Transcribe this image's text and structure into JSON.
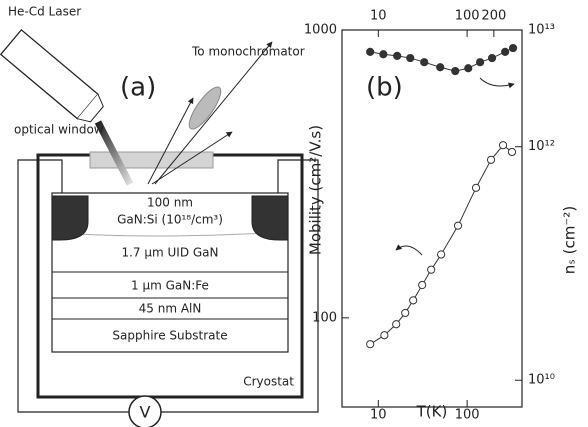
{
  "diagram": {
    "laser": "He-Cd Laser",
    "panel": "(a)",
    "mono": "To monochromator",
    "window": "optical window",
    "layers": [
      "100 nm",
      "GaN:Si (10¹⁸/cm³)",
      "1.7 μm UID GaN",
      "1 μm GaN:Fe",
      "45 nm AlN",
      "Sapphire Substrate"
    ],
    "cryostat": "Cryostat",
    "meter": "V"
  },
  "chart_data": {
    "type": "line",
    "panel": "(b)",
    "x_label": "T(K)",
    "y_label": "Mobility (cm²/V.s)",
    "y2_label": "nₛ (cm⁻²)",
    "log_x": true,
    "log_y": true,
    "log_y2": true,
    "xlim": [
      3.9,
      415
    ],
    "xticks": [
      10,
      100
    ],
    "top_xticks": [
      10,
      100,
      200
    ],
    "ylim": [
      49,
      1000
    ],
    "yticks": [
      100,
      1000
    ],
    "y2lim": [
      5900000000.0,
      10000000000000.0
    ],
    "y2ticks": [
      {
        "value": 10000000000000.0,
        "label": "10¹³"
      },
      {
        "value": 1000000000000.0,
        "label": "10¹²"
      },
      {
        "value": 10000000000.0,
        "label": "10¹⁰"
      }
    ],
    "series": [
      {
        "color": "#333333",
        "marker": "open",
        "axis": "y",
        "x": [
          8.1,
          11.7,
          15.9,
          20.1,
          24.7,
          31.2,
          39.4,
          51,
          79,
          126,
          186,
          254,
          320
        ],
        "values": [
          81,
          87,
          95,
          104,
          115,
          130,
          147,
          166,
          209,
          283,
          354,
          398,
          377
        ]
      },
      {
        "color": "#333333",
        "marker": "filled",
        "axis": "y2",
        "x": [
          8.1,
          11.4,
          16.3,
          22.9,
          32.9,
          49.8,
          73.5,
          103,
          140,
          191,
          268,
          329
        ],
        "values": [
          6500000000000.0,
          6200000000000.0,
          6000000000000.0,
          5750000000000.0,
          5300000000000.0,
          4800000000000.0,
          4450000000000.0,
          4700000000000.0,
          5300000000000.0,
          5750000000000.0,
          6500000000000.0,
          7000000000000.0
        ]
      }
    ]
  }
}
